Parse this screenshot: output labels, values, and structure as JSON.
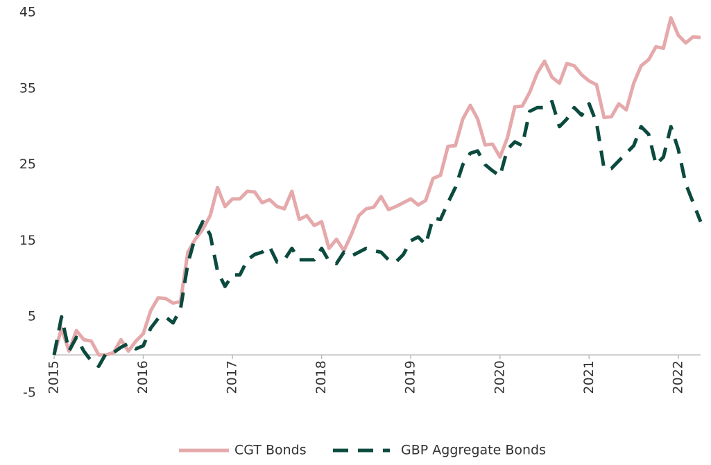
{
  "chart_data": {
    "type": "line",
    "x": [
      2015,
      2015.083,
      2015.167,
      2015.25,
      2015.333,
      2015.417,
      2015.5,
      2015.583,
      2015.667,
      2015.75,
      2015.833,
      2015.917,
      2016,
      2016.083,
      2016.167,
      2016.25,
      2016.333,
      2016.417,
      2016.5,
      2016.583,
      2016.667,
      2016.75,
      2016.833,
      2016.917,
      2017,
      2017.083,
      2017.167,
      2017.25,
      2017.333,
      2017.417,
      2017.5,
      2017.583,
      2017.667,
      2017.75,
      2017.833,
      2017.917,
      2018,
      2018.083,
      2018.167,
      2018.25,
      2018.333,
      2018.417,
      2018.5,
      2018.583,
      2018.667,
      2018.75,
      2018.833,
      2018.917,
      2019,
      2019.083,
      2019.167,
      2019.25,
      2019.333,
      2019.417,
      2019.5,
      2019.583,
      2019.667,
      2019.75,
      2019.833,
      2019.917,
      2020,
      2020.083,
      2020.167,
      2020.25,
      2020.333,
      2020.417,
      2020.5,
      2020.583,
      2020.667,
      2020.75,
      2020.833,
      2020.917,
      2021,
      2021.083,
      2021.167,
      2021.25,
      2021.333,
      2021.417,
      2021.5,
      2021.583,
      2021.667,
      2021.75,
      2021.833,
      2021.917,
      2022,
      2022.083,
      2022.167,
      2022.25
    ],
    "series": [
      {
        "name": "CGT Bonds",
        "color": "#e5a9ab",
        "dash": false,
        "values": [
          0,
          3.5,
          0.5,
          3.2,
          2,
          1.8,
          0,
          0,
          0.3,
          2,
          0.5,
          1.8,
          2.8,
          5.8,
          7.5,
          7.4,
          6.8,
          7,
          13.5,
          15.2,
          16.5,
          18.3,
          22,
          19.5,
          20.5,
          20.5,
          21.5,
          21.4,
          20,
          20.4,
          19.5,
          19.2,
          21.5,
          17.8,
          18.3,
          17,
          17.5,
          14,
          15.2,
          13.7,
          15.8,
          18.3,
          19.2,
          19.4,
          20.8,
          19.1,
          19.5,
          20,
          20.5,
          19.7,
          20.3,
          23.2,
          23.6,
          27.4,
          27.5,
          31,
          32.8,
          31,
          27.6,
          27.7,
          26,
          28.5,
          32.6,
          32.7,
          34.5,
          37,
          38.6,
          36.5,
          35.7,
          38.3,
          38,
          36.8,
          36,
          35.5,
          31.2,
          31.3,
          33,
          32.2,
          35.7,
          38,
          38.8,
          40.5,
          40.3,
          44.3,
          42,
          41,
          41.8,
          41.7
        ]
      },
      {
        "name": "GBP Aggregate Bonds",
        "color": "#0b4a3e",
        "dash": true,
        "values": [
          0,
          5,
          0.5,
          2.3,
          0.5,
          -0.8,
          -1.5,
          0.2,
          0.3,
          1,
          1.5,
          0.8,
          1.2,
          3.5,
          4.8,
          5,
          4.2,
          6,
          12,
          15.5,
          17.5,
          15.8,
          11,
          9,
          10.5,
          10.5,
          12.5,
          13.2,
          13.5,
          14.2,
          12.2,
          12.5,
          14,
          12.5,
          12.5,
          12.5,
          14,
          12.3,
          12,
          13.5,
          13,
          13.5,
          14,
          13.7,
          13.5,
          12.5,
          12.2,
          13.2,
          15,
          15.5,
          14.5,
          18,
          17.8,
          20,
          22,
          25,
          26.5,
          26.8,
          25,
          24.2,
          23.5,
          27,
          28,
          27.5,
          32,
          32.5,
          32.5,
          33.3,
          30,
          31,
          32.5,
          31.5,
          33,
          30.5,
          24.5,
          24.5,
          25.5,
          26.5,
          27.5,
          30,
          29,
          25,
          26,
          30,
          27,
          22.5,
          20,
          17.5
        ]
      }
    ],
    "xlim": [
      2015,
      2022.25
    ],
    "xticks": [
      2015,
      2016,
      2017,
      2018,
      2019,
      2020,
      2021,
      2022
    ],
    "ylim": [
      -5,
      45
    ],
    "yticks": [
      -5,
      5,
      15,
      25,
      35,
      45
    ],
    "grid": false,
    "legend": "bottom"
  }
}
